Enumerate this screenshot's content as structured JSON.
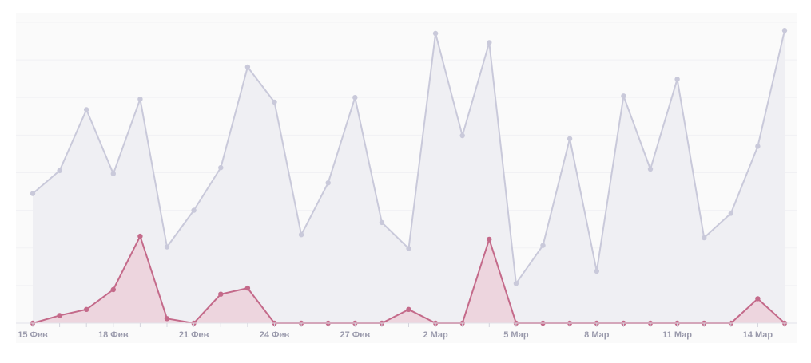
{
  "chart_data": {
    "type": "area",
    "grid": true,
    "legend": "none",
    "ylim": [
      0,
      190
    ],
    "x": [
      "15 Фев",
      "16 Фев",
      "17 Фев",
      "18 Фев",
      "19 Фев",
      "20 Фев",
      "21 Фев",
      "22 Фев",
      "23 Фев",
      "24 Фев",
      "25 Фев",
      "26 Фев",
      "27 Фев",
      "28 Фев",
      "1 Мар",
      "2 Мар",
      "3 Мар",
      "4 Мар",
      "5 Мар",
      "6 Мар",
      "7 Мар",
      "8 Мар",
      "9 Мар",
      "10 Мар",
      "11 Мар",
      "12 Мар",
      "13 Мар",
      "14 Мар",
      "15 Мар"
    ],
    "tick_labels": [
      "15 Фев",
      "18 Фев",
      "21 Фев",
      "24 Фев",
      "27 Фев",
      "2 Мар",
      "5 Мар",
      "8 Мар",
      "11 Мар",
      "14 Мар"
    ],
    "tick_indices": [
      0,
      3,
      6,
      9,
      12,
      15,
      18,
      21,
      24,
      27
    ],
    "series": [
      {
        "color": "#c9c9da",
        "fill": "#efeff3",
        "values": [
          85,
          100,
          140,
          98,
          147,
          50,
          74,
          102,
          168,
          145,
          58,
          92,
          148,
          66,
          49,
          190,
          123,
          184,
          26,
          51,
          121,
          34,
          149,
          101,
          160,
          56,
          72,
          116,
          192
        ]
      },
      {
        "color": "#c46a8a",
        "fill": "#ecd2dc",
        "values": [
          0,
          5,
          9,
          22,
          57,
          3,
          0,
          19,
          23,
          0,
          0,
          0,
          0,
          0,
          9,
          0,
          0,
          55,
          0,
          0,
          0,
          0,
          0,
          0,
          0,
          0,
          0,
          16,
          0
        ]
      }
    ]
  }
}
